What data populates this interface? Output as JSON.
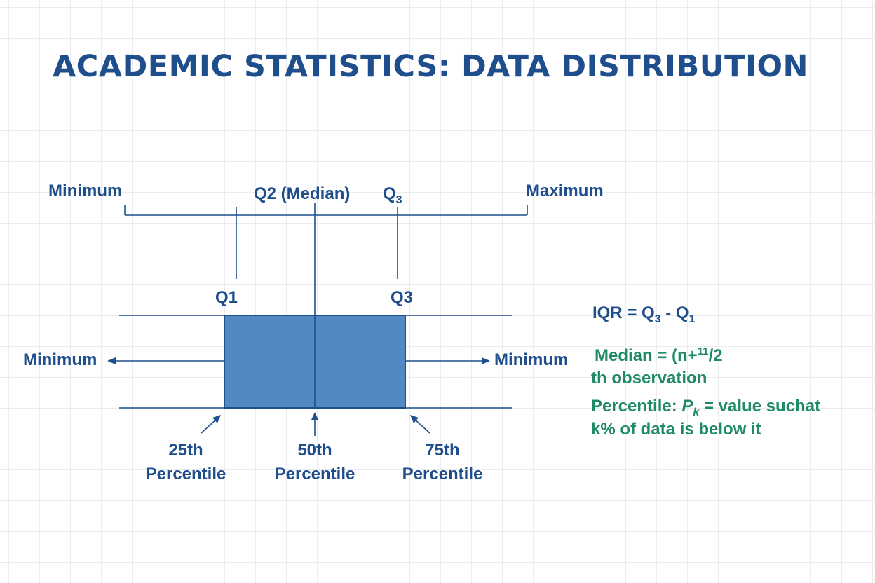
{
  "title": "ACADEMIC STATISTICS: DATA DISTRIBUTION",
  "top_labels": {
    "minimum": "Minimum",
    "median": "Q2 (Median)",
    "q3_base": "Q",
    "q3_sub": "3",
    "maximum": "Maximum"
  },
  "box_labels": {
    "q1": "Q1",
    "q3": "Q3"
  },
  "side_labels": {
    "left": "Minimum",
    "right": "Minimum"
  },
  "percentiles": [
    {
      "line1": "25th",
      "line2": "Percentile"
    },
    {
      "line1": "50th",
      "line2": "Percentile"
    },
    {
      "line1": "75th",
      "line2": "Percentile"
    }
  ],
  "formulas": {
    "iqr_prefix": "IQR = Q",
    "iqr_sub1": "3",
    "iqr_mid": " - Q",
    "iqr_sub2": "1",
    "median_prefix": "Median = (n+",
    "median_sup": "11",
    "median_suffix": "/2",
    "median_line2": "th observation",
    "percentile_prefix": "Percentile: ",
    "percentile_p": "P",
    "percentile_k": "k",
    "percentile_suffix": " = value suchat",
    "percentile_line2": "k% of data is below it"
  },
  "colors": {
    "title": "#1f4e8c",
    "text": "#1f4e8c",
    "box_fill": "#5389c2",
    "box_stroke": "#1f4e8c",
    "line": "#1f4e8c",
    "formula_green": "#1f8a66"
  }
}
